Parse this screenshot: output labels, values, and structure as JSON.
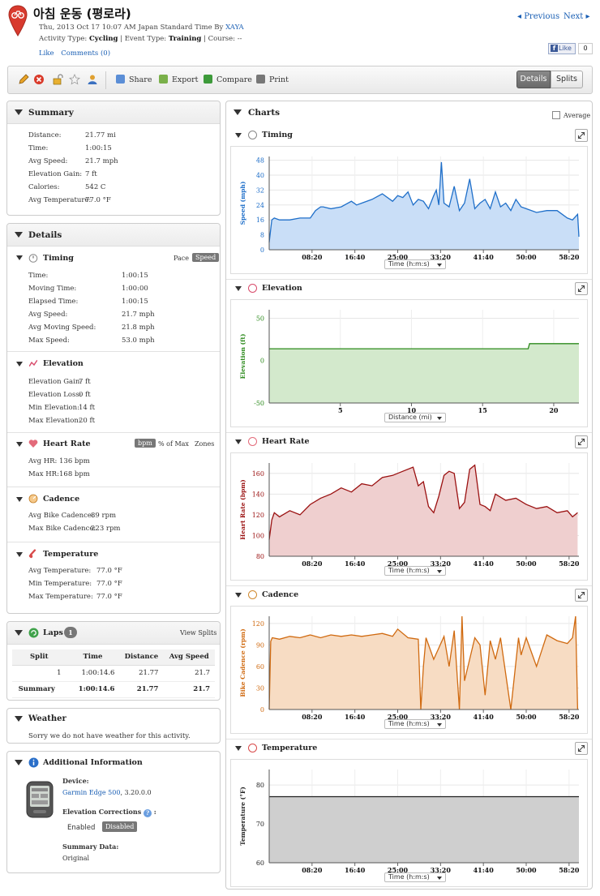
{
  "header": {
    "title": "아침 운동 (평로라)",
    "meta_prefix": "Thu, 2013 Oct 17 10:07 AM Japan Standard Time By ",
    "user": "XAYA",
    "activity_type_label": "Activity Type: ",
    "activity_type": "Cycling",
    "event_type_label": " | Event Type: ",
    "event_type": "Training",
    "course_label": " | Course: --",
    "like": "Like",
    "comments": "Comments (0)",
    "prev": "Previous",
    "next": "Next",
    "fb_like": "Like",
    "fb_count": "0"
  },
  "toolbar": {
    "share": "Share",
    "export": "Export",
    "compare": "Compare",
    "print": "Print",
    "details": "Details",
    "splits": "Splits"
  },
  "summary": {
    "title": "Summary",
    "rows": [
      {
        "k": "Distance:",
        "v": "21.77 mi"
      },
      {
        "k": "Time:",
        "v": "1:00:15"
      },
      {
        "k": "Avg Speed:",
        "v": "21.7 mph"
      },
      {
        "k": "Elevation Gain:",
        "v": "7 ft"
      },
      {
        "k": "Calories:",
        "v": "542 C"
      },
      {
        "k": "Avg Temperature:",
        "v": "77.0 °F"
      }
    ]
  },
  "details": {
    "title": "Details",
    "timing": {
      "title": "Timing",
      "pace": "Pace",
      "speed": "Speed",
      "rows": [
        {
          "k": "Time:",
          "v": "1:00:15"
        },
        {
          "k": "Moving Time:",
          "v": "1:00:00"
        },
        {
          "k": "Elapsed Time:",
          "v": "1:00:15"
        },
        {
          "k": "Avg Speed:",
          "v": "21.7 mph"
        },
        {
          "k": "Avg Moving Speed:",
          "v": "21.8 mph"
        },
        {
          "k": "Max Speed:",
          "v": "53.0 mph"
        }
      ]
    },
    "elevation": {
      "title": "Elevation",
      "rows": [
        {
          "k": "Elevation Gain:",
          "v": "7 ft"
        },
        {
          "k": "Elevation Loss:",
          "v": "0 ft"
        },
        {
          "k": "Min Elevation:",
          "v": "14 ft"
        },
        {
          "k": "Max Elevation:",
          "v": "20 ft"
        }
      ]
    },
    "heart_rate": {
      "title": "Heart Rate",
      "bpm": "bpm",
      "pct_max": "% of Max",
      "zones": "Zones",
      "rows": [
        {
          "k": "Avg HR:",
          "v": "136 bpm"
        },
        {
          "k": "Max HR:",
          "v": "168 bpm"
        }
      ]
    },
    "cadence": {
      "title": "Cadence",
      "rows": [
        {
          "k": "Avg Bike Cadence:",
          "v": "89 rpm"
        },
        {
          "k": "Max Bike Cadence:",
          "v": "223 rpm"
        }
      ]
    },
    "temperature": {
      "title": "Temperature",
      "rows": [
        {
          "k": "Avg Temperature:",
          "v": "77.0 °F"
        },
        {
          "k": "Min Temperature:",
          "v": "77.0 °F"
        },
        {
          "k": "Max Temperature:",
          "v": "77.0 °F"
        }
      ]
    }
  },
  "laps": {
    "title": "Laps",
    "count": "1",
    "view_splits": "View Splits",
    "headers": [
      "Split",
      "Time",
      "Distance",
      "Avg Speed"
    ],
    "rows": [
      [
        "1",
        "1:00:14.6",
        "21.77",
        "21.7"
      ]
    ],
    "summary": [
      "Summary",
      "1:00:14.6",
      "21.77",
      "21.7"
    ]
  },
  "weather": {
    "title": "Weather",
    "text": "Sorry we do not have weather for this activity."
  },
  "additional": {
    "title": "Additional Information",
    "device_label": "Device:",
    "device": "Garmin Edge 500",
    "device_version": ", 3.20.0.0",
    "elev_corr_label": "Elevation Corrections",
    "enabled": "Enabled",
    "disabled": "Disabled",
    "summary_data_label": "Summary Data:",
    "summary_data": "Original"
  },
  "charts": {
    "title": "Charts",
    "average": "Average"
  },
  "chart_data": [
    {
      "type": "area",
      "section": "Timing",
      "ylabel": "Speed (mph)",
      "xselect": "Time (h:m:s)",
      "color": "#1f6fc9",
      "fill": "#c9def7",
      "xticks": [
        "08:20",
        "16:40",
        "25:00",
        "33:20",
        "41:40",
        "50:00",
        "58:20"
      ],
      "yticks": [
        "0",
        "8",
        "16",
        "24",
        "32",
        "40",
        "48"
      ],
      "ylim": [
        0,
        50
      ],
      "xlim": [
        0,
        60.25
      ],
      "x": [
        0,
        0.5,
        1,
        2,
        4,
        6,
        8,
        9,
        10,
        10.5,
        12,
        14,
        16,
        17,
        18,
        20,
        22,
        24,
        25,
        26,
        27,
        28,
        29,
        30,
        31,
        32,
        32.5,
        33,
        33.5,
        34,
        35,
        36,
        37,
        38,
        39,
        40,
        41,
        42,
        43,
        44,
        45,
        46,
        47,
        48,
        49,
        50,
        52,
        54,
        56,
        58,
        59,
        60,
        60.25
      ],
      "y": [
        4,
        16,
        17,
        16,
        16,
        17,
        17,
        21,
        23,
        23,
        22,
        23,
        26,
        24,
        25,
        27,
        30,
        26,
        29,
        28,
        31,
        24,
        27,
        26,
        22,
        29,
        32,
        24,
        47,
        25,
        23,
        34,
        21,
        25,
        38,
        22,
        25,
        27,
        22,
        31,
        23,
        25,
        21,
        27,
        23,
        22,
        20,
        21,
        21,
        17,
        16,
        19,
        7
      ]
    },
    {
      "type": "area",
      "section": "Elevation",
      "ylabel": "Elevation (ft)",
      "xselect": "Distance (mi)",
      "color": "#2e8b1e",
      "fill": "#d3e9cc",
      "xticks": [
        "5",
        "10",
        "15",
        "20"
      ],
      "xtickvals": [
        5,
        10,
        15,
        20
      ],
      "yticks": [
        "50",
        "0",
        "-50"
      ],
      "ylim": [
        -50,
        60
      ],
      "xlim": [
        0,
        21.77
      ],
      "x": [
        0,
        18.2,
        18.3,
        21.77
      ],
      "y": [
        14,
        14,
        20,
        20
      ]
    },
    {
      "type": "area",
      "section": "Heart Rate",
      "ylabel": "Heart Rate (bpm)",
      "xselect": "Time (h:m:s)",
      "color": "#9a1010",
      "fill": "#efcfcf",
      "xticks": [
        "08:20",
        "16:40",
        "25:00",
        "33:20",
        "41:40",
        "50:00",
        "58:20"
      ],
      "yticks": [
        "80",
        "100",
        "120",
        "140",
        "160"
      ],
      "ylim": [
        80,
        170
      ],
      "xlim": [
        0,
        60.25
      ],
      "x": [
        0,
        0.5,
        1,
        2,
        4,
        6,
        8,
        10,
        12,
        14,
        16,
        18,
        20,
        22,
        24,
        26,
        28,
        29,
        30,
        31,
        32,
        33,
        34,
        35,
        36,
        37,
        38,
        39,
        40,
        41,
        42,
        43,
        44,
        46,
        48,
        50,
        52,
        54,
        56,
        58,
        59,
        60
      ],
      "y": [
        96,
        115,
        122,
        118,
        124,
        120,
        130,
        136,
        140,
        146,
        142,
        150,
        148,
        156,
        158,
        162,
        166,
        148,
        152,
        128,
        122,
        138,
        158,
        162,
        160,
        126,
        132,
        164,
        168,
        130,
        128,
        124,
        140,
        134,
        136,
        130,
        126,
        128,
        122,
        124,
        118,
        122
      ]
    },
    {
      "type": "area",
      "section": "Cadence",
      "ylabel": "Bike Cadence (rpm)",
      "xselect": "Time (h:m:s)",
      "color": "#d06a10",
      "fill": "#f7dcc3",
      "xticks": [
        "08:20",
        "16:40",
        "25:00",
        "33:20",
        "41:40",
        "50:00",
        "58:20"
      ],
      "yticks": [
        "0",
        "30",
        "60",
        "90",
        "120"
      ],
      "ylim": [
        0,
        130
      ],
      "xlim": [
        0,
        60.25
      ],
      "x": [
        0,
        0.3,
        0.6,
        2,
        4,
        6,
        8,
        10,
        12,
        14,
        16,
        18,
        20,
        22,
        24,
        25,
        27,
        29,
        29.5,
        30,
        30.5,
        32,
        34,
        35,
        36,
        37,
        37.5,
        38,
        40,
        41,
        42,
        43,
        44,
        45,
        47,
        48.5,
        49,
        50,
        52,
        54,
        56,
        58,
        59,
        59.6,
        60
      ],
      "y": [
        0,
        95,
        100,
        98,
        102,
        100,
        104,
        100,
        104,
        102,
        104,
        102,
        104,
        106,
        102,
        112,
        100,
        98,
        0,
        60,
        100,
        70,
        102,
        60,
        110,
        0,
        130,
        40,
        100,
        90,
        20,
        96,
        70,
        100,
        0,
        100,
        76,
        100,
        60,
        104,
        96,
        92,
        100,
        130,
        0
      ]
    },
    {
      "type": "area",
      "section": "Temperature",
      "ylabel": "Temperature (°F)",
      "xselect": "Time (h:m:s)",
      "color": "#222222",
      "fill": "#cfcfcf",
      "xticks": [
        "08:20",
        "16:40",
        "25:00",
        "33:20",
        "41:40",
        "50:00",
        "58:20"
      ],
      "yticks": [
        "60",
        "70",
        "80"
      ],
      "ylim": [
        60,
        84
      ],
      "xlim": [
        0,
        60.25
      ],
      "x": [
        0,
        60.25
      ],
      "y": [
        77,
        77
      ]
    }
  ]
}
